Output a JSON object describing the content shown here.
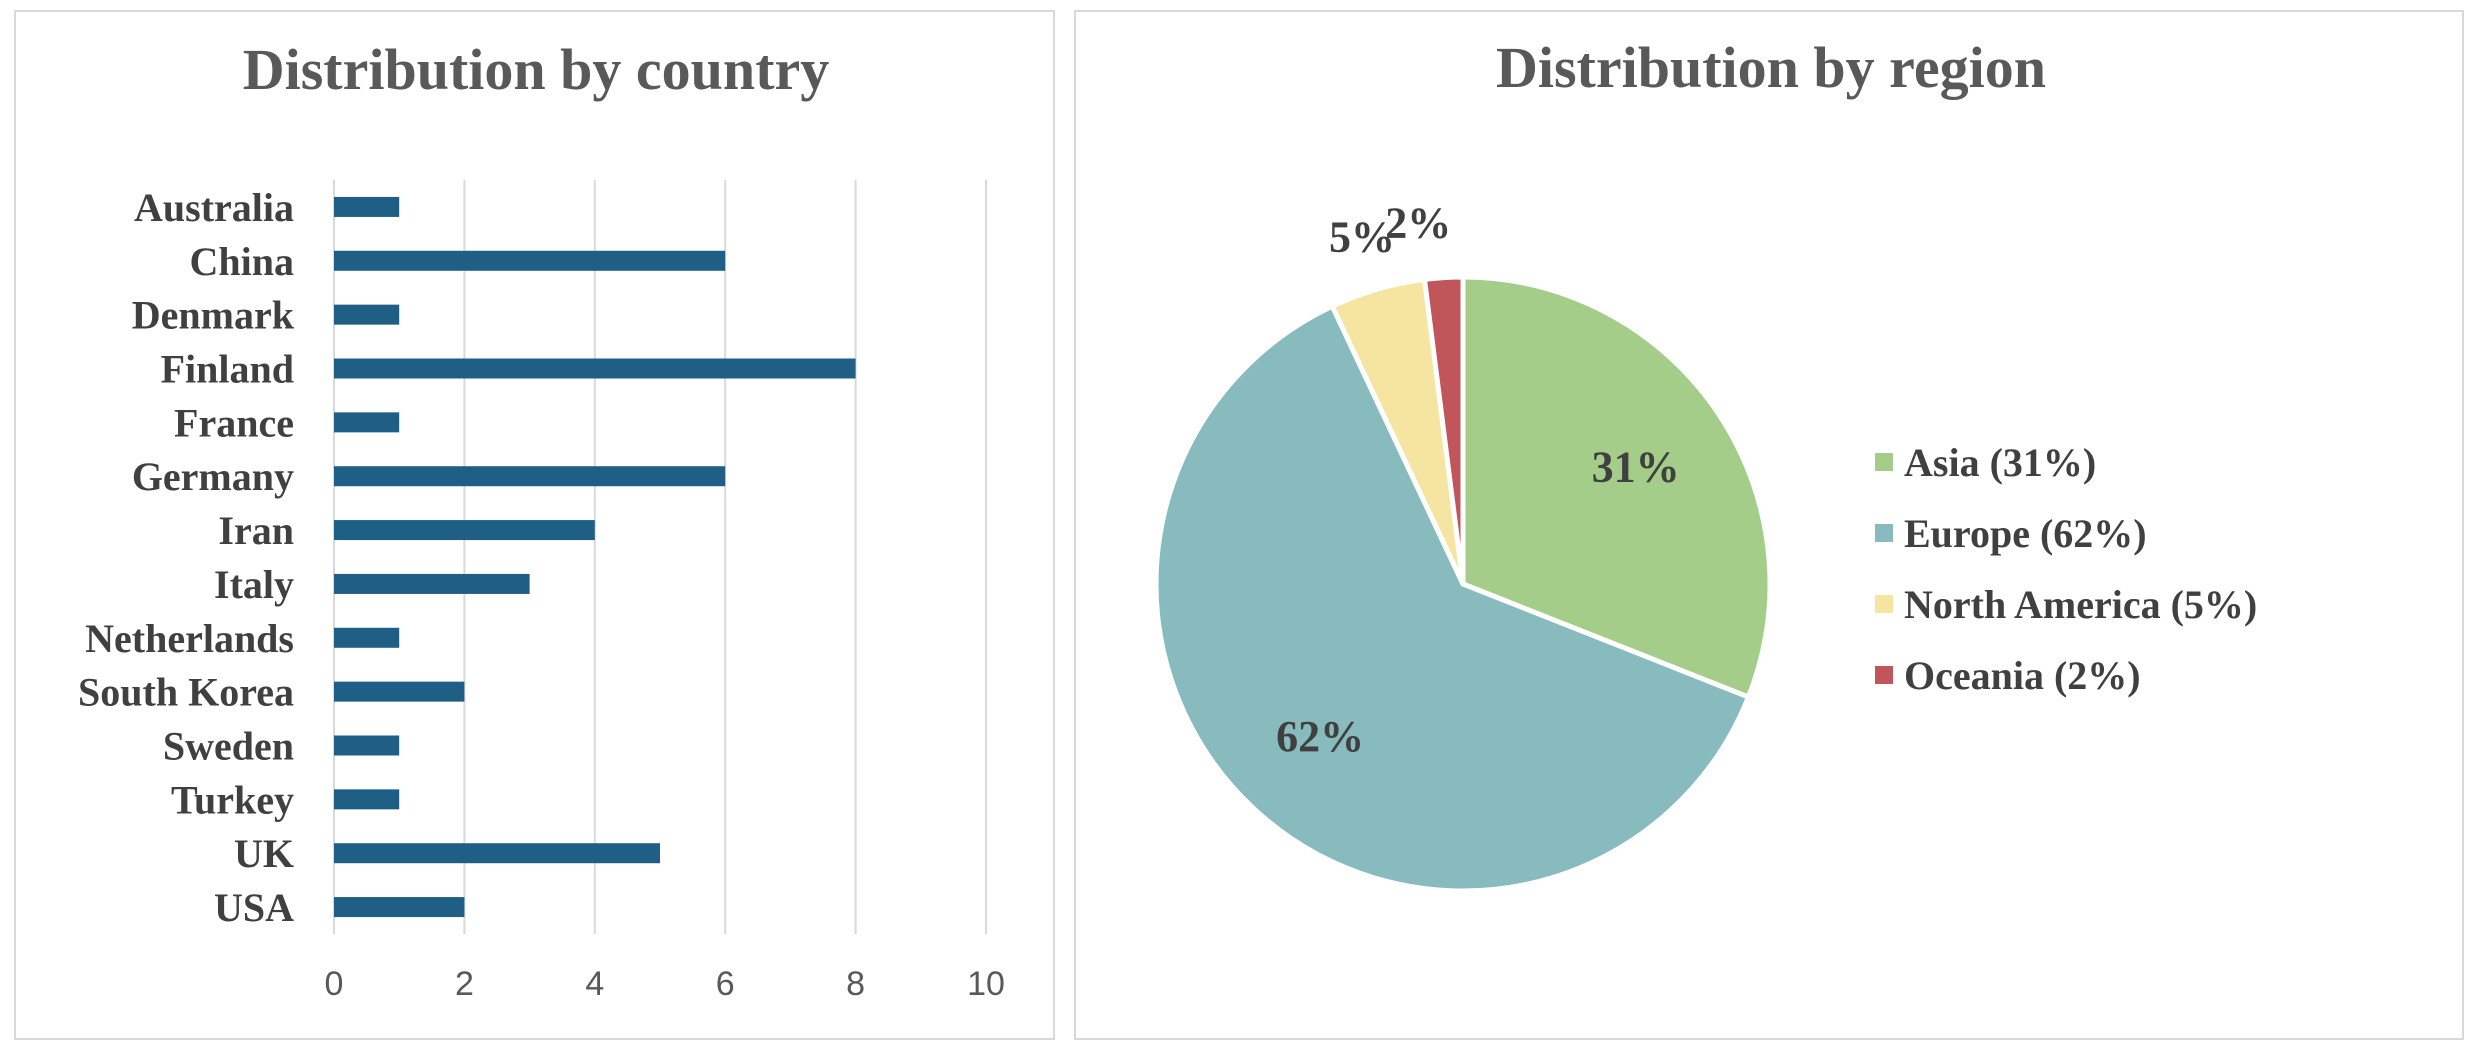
{
  "chart_data": [
    {
      "type": "bar",
      "orientation": "horizontal",
      "title": "Distribution by country",
      "categories": [
        "Australia",
        "China",
        "Denmark",
        "Finland",
        "France",
        "Germany",
        "Iran",
        "Italy",
        "Netherlands",
        "South Korea",
        "Sweden",
        "Turkey",
        "UK",
        "USA"
      ],
      "values": [
        1,
        6,
        1,
        8,
        1,
        6,
        4,
        3,
        1,
        2,
        1,
        1,
        5,
        2
      ],
      "xlim": [
        0,
        10
      ],
      "xticks": [
        "0",
        "2",
        "4",
        "6",
        "8",
        "10"
      ],
      "grid": "vertical",
      "bar_color": "#1f5f85"
    },
    {
      "type": "pie",
      "title": "Distribution by region",
      "slices": [
        {
          "name": "Asia",
          "value": 31,
          "label": "31%",
          "legend": "Asia (31%)",
          "color": "#a5cd8a"
        },
        {
          "name": "Europe",
          "value": 62,
          "label": "62%",
          "legend": "Europe (62%)",
          "color": "#87bbbd"
        },
        {
          "name": "North America",
          "value": 5,
          "label": "5%",
          "legend": "North America (5%)",
          "color": "#f6e5a0"
        },
        {
          "name": "Oceania",
          "value": 2,
          "label": "2%",
          "legend": "Oceania (2%)",
          "color": "#c0555a"
        }
      ],
      "legend_position": "right"
    }
  ]
}
